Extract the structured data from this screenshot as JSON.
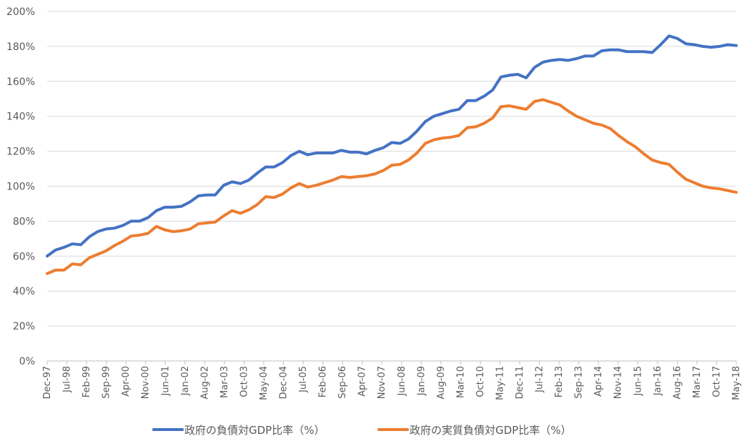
{
  "chart_data": {
    "type": "line",
    "y_ticks": [
      "0%",
      "20%",
      "40%",
      "60%",
      "80%",
      "100%",
      "120%",
      "140%",
      "160%",
      "180%",
      "200%"
    ],
    "ylim": [
      0,
      200
    ],
    "grid": true,
    "legend_position": "bottom",
    "x_tick_labels": [
      "Dec-97",
      "Jul-98",
      "Feb-99",
      "Sep-99",
      "Apr-00",
      "Nov-00",
      "Jun-01",
      "Jan-02",
      "Aug-02",
      "Mar-03",
      "Oct-03",
      "May-04",
      "Dec-04",
      "Jul-05",
      "Feb-06",
      "Sep-06",
      "Apr-07",
      "Nov-07",
      "Jun-08",
      "Jan-09",
      "Aug-09",
      "Mar-10",
      "Oct-10",
      "May-11",
      "Dec-11",
      "Jul-12",
      "Feb-13",
      "Sep-13",
      "Apr-14",
      "Nov-14",
      "Jun-15",
      "Jan-16",
      "Aug-16",
      "Mar-17",
      "Oct-17",
      "May-18"
    ],
    "x": [
      "Dec-97",
      "Mar-98",
      "Jun-98",
      "Sep-98",
      "Dec-98",
      "Mar-99",
      "Jun-99",
      "Sep-99",
      "Dec-99",
      "Mar-00",
      "Jun-00",
      "Sep-00",
      "Dec-00",
      "Mar-01",
      "Jun-01",
      "Sep-01",
      "Dec-01",
      "Mar-02",
      "Jun-02",
      "Sep-02",
      "Dec-02",
      "Mar-03",
      "Jun-03",
      "Sep-03",
      "Dec-03",
      "Mar-04",
      "Jun-04",
      "Sep-04",
      "Dec-04",
      "Mar-05",
      "Jun-05",
      "Sep-05",
      "Dec-05",
      "Mar-06",
      "Jun-06",
      "Sep-06",
      "Dec-06",
      "Mar-07",
      "Jun-07",
      "Sep-07",
      "Dec-07",
      "Mar-08",
      "Jun-08",
      "Sep-08",
      "Dec-08",
      "Mar-09",
      "Jun-09",
      "Sep-09",
      "Dec-09",
      "Mar-10",
      "Jun-10",
      "Sep-10",
      "Dec-10",
      "Mar-11",
      "Jun-11",
      "Sep-11",
      "Dec-11",
      "Mar-12",
      "Jun-12",
      "Sep-12",
      "Dec-12",
      "Mar-13",
      "Jun-13",
      "Sep-13",
      "Dec-13",
      "Mar-14",
      "Jun-14",
      "Sep-14",
      "Dec-14",
      "Mar-15",
      "Jun-15",
      "Sep-15",
      "Dec-15",
      "Mar-16",
      "Jun-16",
      "Sep-16",
      "Dec-16",
      "Mar-17",
      "Jun-17",
      "Sep-17",
      "Dec-17",
      "Mar-18",
      "Jun-18"
    ],
    "series": [
      {
        "name": "政府の負債対GDP比率（%）",
        "color": "#4472c4",
        "values": [
          60,
          63.5,
          65,
          67,
          66.5,
          71,
          74,
          75.5,
          76,
          77.5,
          80,
          80,
          82,
          86,
          88,
          88,
          88.5,
          91,
          94.5,
          95,
          95,
          100.5,
          102.5,
          101.5,
          103.5,
          107.5,
          111,
          111,
          113.5,
          117.5,
          120,
          118,
          119,
          119,
          119,
          120.5,
          119.5,
          119.5,
          118.5,
          120.5,
          122,
          125,
          124.5,
          127,
          131.5,
          137,
          140,
          141.5,
          143,
          144,
          149,
          149,
          151.5,
          155,
          162.5,
          163.5,
          164,
          162,
          168,
          171,
          172,
          172.5,
          172,
          173,
          174.5,
          174.5,
          177.5,
          178,
          178,
          177,
          177,
          177,
          176.5,
          181,
          186,
          184.5,
          181.5,
          181,
          180,
          179.5,
          180,
          181,
          180.5
        ]
      },
      {
        "name": "政府の実質負債対GDP比率（%）",
        "color": "#ed7d31",
        "values": [
          50,
          52,
          52,
          55.5,
          55,
          59,
          61,
          63,
          66,
          68.5,
          71.5,
          72,
          73,
          77,
          75,
          74,
          74.5,
          75.5,
          78.5,
          79,
          79.5,
          83,
          86,
          84.5,
          86.5,
          89.5,
          94,
          93.5,
          95.5,
          99,
          101.5,
          99.5,
          100.5,
          102,
          103.5,
          105.5,
          105,
          105.5,
          106,
          107,
          109,
          112,
          112.5,
          115,
          119,
          124.5,
          126.5,
          127.5,
          128,
          129,
          133.5,
          134,
          136,
          139,
          145.5,
          146,
          145,
          144,
          148.5,
          149.5,
          148,
          146.5,
          143,
          140,
          138,
          136,
          135,
          133,
          129,
          125.5,
          122.5,
          118.5,
          115,
          113.5,
          112.5,
          108,
          104,
          102,
          100,
          99,
          98.5,
          97.5,
          96.5
        ]
      }
    ]
  }
}
